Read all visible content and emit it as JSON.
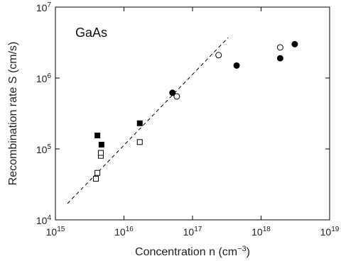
{
  "chart_data": {
    "type": "scatter",
    "title": "",
    "annotation": "GaAs",
    "xlabel": {
      "text": "Concentration  n  (cm",
      "unit_sup": "−3",
      "close": ")"
    },
    "ylabel": "Recombination rate  S  (cm/s)",
    "xscale": "log",
    "yscale": "log",
    "xlim": [
      1000000000000000.0,
      1e+19
    ],
    "ylim": [
      10000.0,
      10000000.0
    ],
    "grid": false,
    "x_ticks": [
      {
        "value": 1000000000000000.0,
        "base": "10",
        "exp": "15"
      },
      {
        "value": 1e+16,
        "base": "10",
        "exp": "16"
      },
      {
        "value": 1e+17,
        "base": "10",
        "exp": "17"
      },
      {
        "value": 1e+18,
        "base": "10",
        "exp": "18"
      },
      {
        "value": 1e+19,
        "base": "10",
        "exp": "19"
      }
    ],
    "y_ticks": [
      {
        "value": 10000.0,
        "base": "10",
        "exp": "4"
      },
      {
        "value": 100000.0,
        "base": "10",
        "exp": "5"
      },
      {
        "value": 1000000.0,
        "base": "10",
        "exp": "6"
      },
      {
        "value": 10000000.0,
        "base": "10",
        "exp": "7"
      }
    ],
    "series": [
      {
        "marker": "filled-square",
        "color": "#000000",
        "points": [
          [
            4100000000000000.0,
            155000.0
          ],
          [
            4700000000000000.0,
            115000.0
          ],
          [
            1.7e+16,
            230000.0
          ]
        ]
      },
      {
        "marker": "open-square",
        "color": "#000000",
        "points": [
          [
            3900000000000000.0,
            38000.0
          ],
          [
            4100000000000000.0,
            46000.0
          ],
          [
            4600000000000000.0,
            80000.0
          ],
          [
            4600000000000000.0,
            88000.0
          ],
          [
            1.7e+16,
            125000.0
          ]
        ]
      },
      {
        "marker": "filled-circle",
        "color": "#000000",
        "points": [
          [
            5.1e+16,
            620000.0
          ],
          [
            4.4e+17,
            1500000.0
          ],
          [
            1.9e+18,
            1900000.0
          ],
          [
            3.1e+18,
            3000000.0
          ]
        ]
      },
      {
        "marker": "open-circle",
        "color": "#000000",
        "points": [
          [
            5.9e+16,
            550000.0
          ],
          [
            2.4e+17,
            2100000.0
          ],
          [
            1.9e+18,
            2700000.0
          ]
        ]
      }
    ],
    "fit_line": {
      "style": "dashed",
      "color": "#000000",
      "points": [
        [
          1500000000000000.0,
          17000.0
        ],
        [
          3.3e+17,
          3700000.0
        ]
      ]
    }
  }
}
